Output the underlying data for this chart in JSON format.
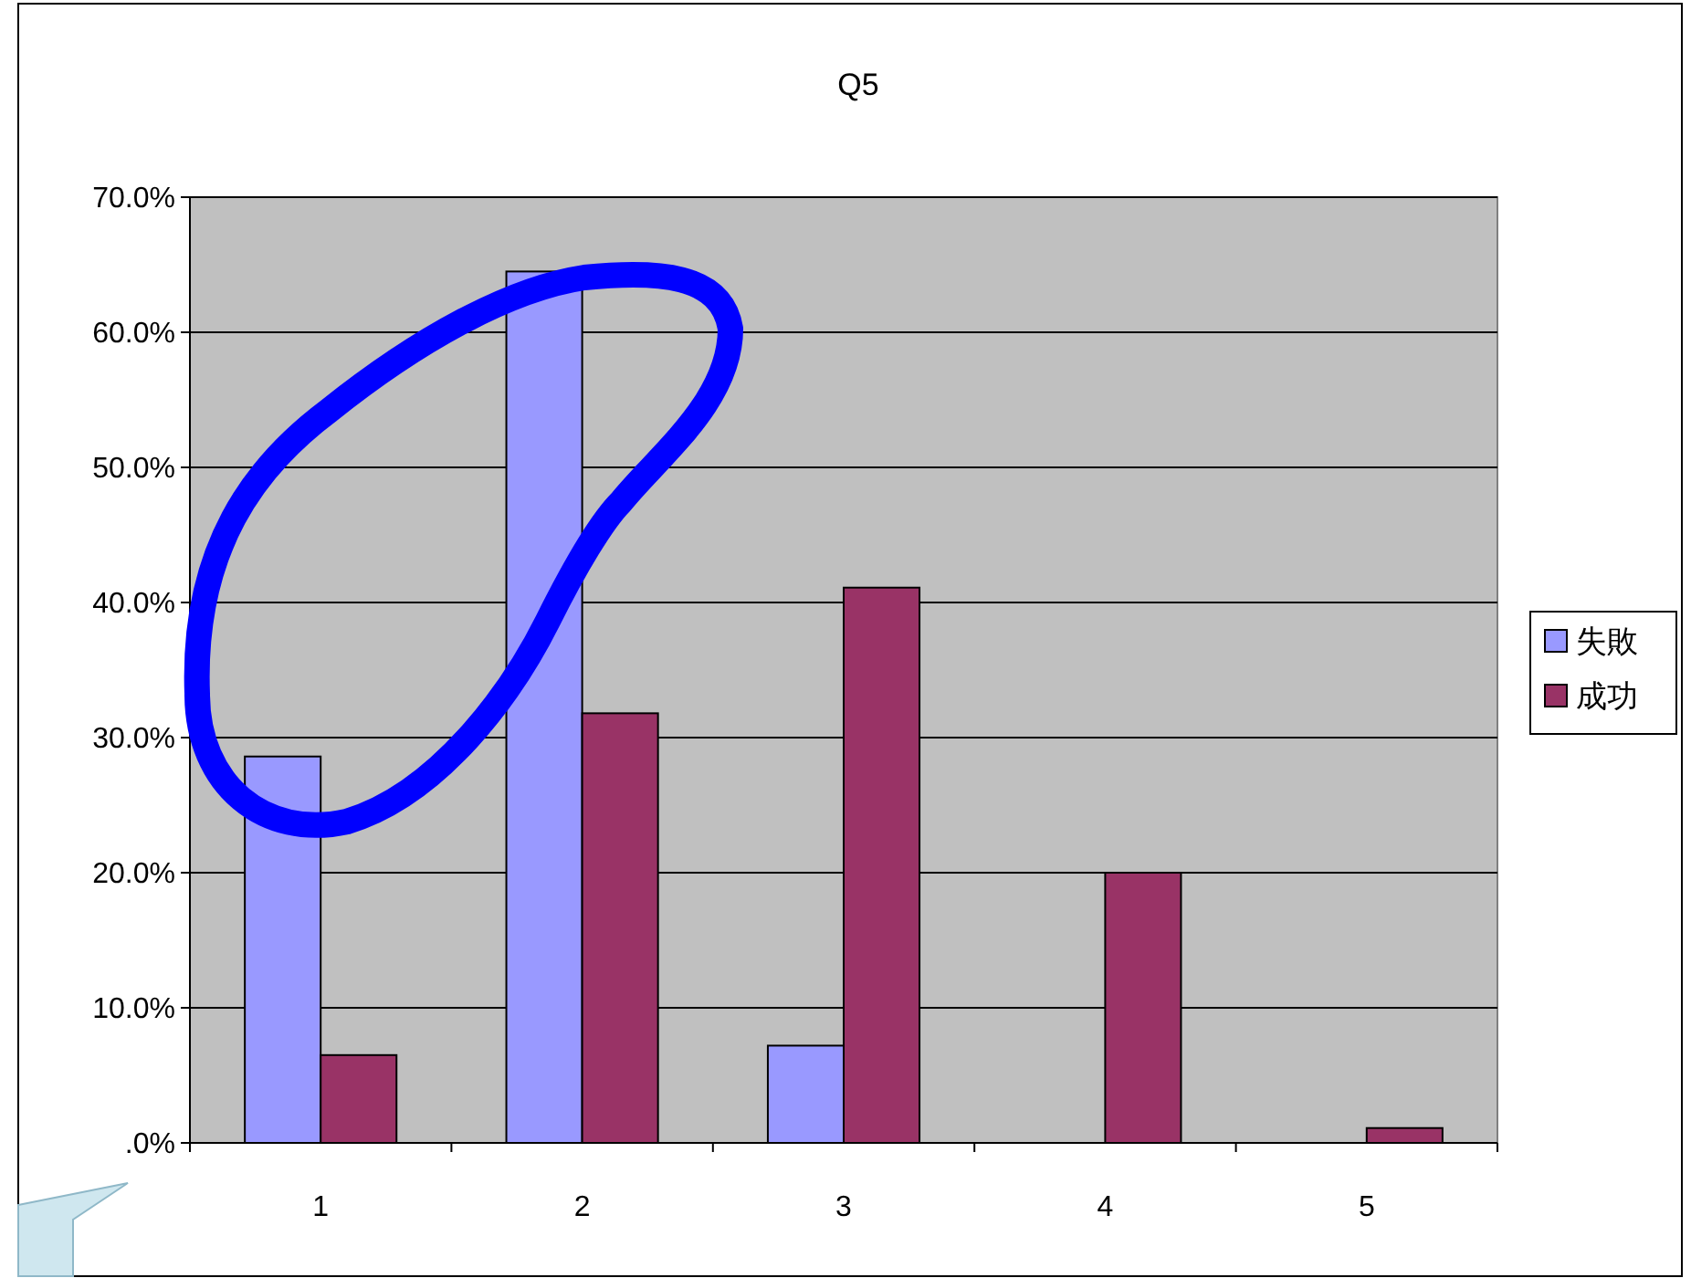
{
  "chart_data": {
    "type": "bar",
    "title": "Q5",
    "categories": [
      "1",
      "2",
      "3",
      "4",
      "5"
    ],
    "series": [
      {
        "name": "失敗",
        "color": "#9999ff",
        "values": [
          28.6,
          64.5,
          7.2,
          0,
          0
        ]
      },
      {
        "name": "成功",
        "color": "#993366",
        "values": [
          6.5,
          31.8,
          41.1,
          20.0,
          1.1
        ]
      }
    ],
    "ylim": [
      0,
      70
    ],
    "yticks": [
      {
        "value": 0,
        "label": ".0%"
      },
      {
        "value": 10,
        "label": "10.0%"
      },
      {
        "value": 20,
        "label": "20.0%"
      },
      {
        "value": 30,
        "label": "30.0%"
      },
      {
        "value": 40,
        "label": "40.0%"
      },
      {
        "value": 50,
        "label": "50.0%"
      },
      {
        "value": 60,
        "label": "60.0%"
      },
      {
        "value": 70,
        "label": "70.0%"
      }
    ],
    "grid": "y",
    "legend": "right"
  }
}
